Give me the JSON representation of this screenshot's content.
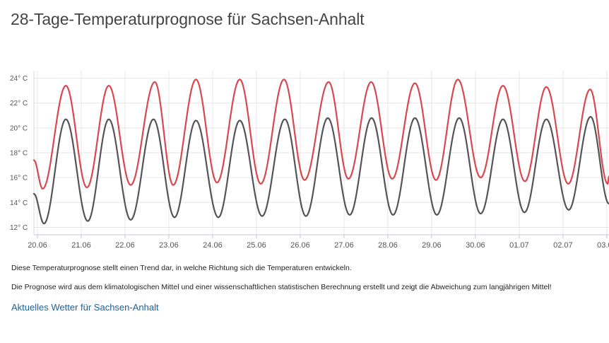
{
  "page": {
    "title": "28-Tage-Temperaturprognose für Sachsen-Anhalt",
    "note1": "Diese Temperaturprognose stellt einen Trend dar, in welche Richtung sich die Temperaturen entwickeln.",
    "note2": "Die Prognose wird aus dem klimatologischen Mittel und einer wissenschaftlichen statistischen Berechnung erstellt und zeigt die Abweichung zum langjährigen Mittel!",
    "link": "Aktuelles Wetter für Sachsen-Anhalt"
  },
  "chart_data": {
    "type": "line",
    "title": "",
    "xlabel": "",
    "ylabel": "",
    "categories": [
      "20.06",
      "21.06",
      "22.06",
      "23.06",
      "24.06",
      "25.06",
      "26.06",
      "27.06",
      "28.06",
      "29.06",
      "30.06",
      "01.07",
      "02.07",
      "03.07"
    ],
    "yticks": [
      12,
      14,
      16,
      18,
      20,
      22,
      24
    ],
    "ytick_labels": [
      "12° C",
      "14° C",
      "16° C",
      "18° C",
      "20° C",
      "22° C",
      "24° C"
    ],
    "ylim": [
      11.4,
      24.6
    ],
    "xlim": [
      -0.08,
      13.05
    ],
    "grid": true,
    "legend": "none",
    "colors": {
      "max": "#d9474f",
      "min": "#555555",
      "grid": "#e6e6e6",
      "axis": "#c0c8d2"
    },
    "series": [
      {
        "key": "max",
        "x": [
          -0.08,
          0.12,
          0.65,
          1.13,
          1.63,
          2.13,
          2.68,
          3.1,
          3.62,
          4.1,
          4.62,
          5.1,
          5.63,
          6.1,
          6.65,
          7.1,
          7.62,
          8.1,
          8.62,
          9.1,
          9.6,
          10.12,
          10.63,
          11.13,
          11.62,
          12.12,
          12.62,
          13.02,
          13.05
        ],
        "values": [
          17.4,
          15.1,
          23.4,
          15.2,
          23.4,
          15.4,
          23.7,
          15.4,
          23.9,
          15.6,
          23.9,
          15.5,
          23.9,
          15.8,
          23.7,
          15.9,
          23.7,
          15.9,
          23.6,
          15.8,
          23.9,
          16.0,
          23.4,
          15.7,
          23.3,
          15.5,
          23.1,
          15.5,
          16.1
        ]
      },
      {
        "key": "min",
        "x": [
          -0.08,
          0.15,
          0.65,
          1.15,
          1.63,
          2.13,
          2.65,
          3.13,
          3.62,
          4.13,
          4.62,
          5.13,
          5.65,
          6.13,
          6.63,
          7.13,
          7.63,
          8.12,
          8.62,
          9.12,
          9.63,
          10.12,
          10.63,
          11.12,
          11.62,
          12.13,
          12.63,
          13.05
        ],
        "values": [
          14.7,
          12.3,
          20.7,
          12.5,
          20.7,
          12.6,
          20.7,
          12.8,
          20.6,
          12.8,
          20.6,
          12.9,
          20.7,
          12.9,
          20.8,
          13.0,
          20.8,
          13.0,
          20.8,
          13.0,
          20.8,
          13.1,
          20.7,
          13.2,
          20.7,
          13.4,
          20.9,
          13.9
        ]
      }
    ]
  }
}
